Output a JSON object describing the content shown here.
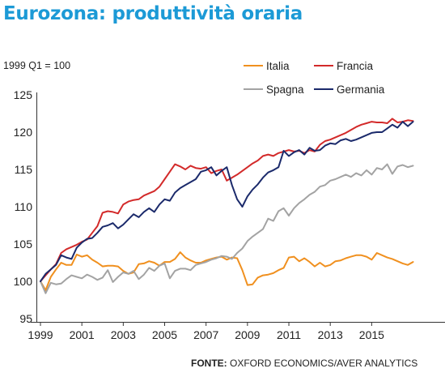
{
  "title": "Eurozona: produttività oraria",
  "subtitle": "1999 Q1 = 100",
  "source": {
    "label": "FONTE:",
    "text": "OXFORD ECONOMICS/AVER ANALYTICS"
  },
  "chart_data": {
    "type": "line",
    "ylim": [
      95,
      125
    ],
    "xlim": [
      1999,
      2017.8
    ],
    "y_ticks": [
      95,
      100,
      105,
      110,
      115,
      120,
      125
    ],
    "x_ticks": [
      1999,
      2001,
      2003,
      2005,
      2007,
      2009,
      2011,
      2013,
      2015
    ],
    "grid": false,
    "legend_position": "top-right",
    "series": [
      {
        "name": "Italia",
        "color": "#f0901f",
        "x": [
          1999,
          1999.25,
          1999.5,
          1999.75,
          2000,
          2000.25,
          2000.5,
          2000.75,
          2001,
          2001.25,
          2001.5,
          2001.75,
          2002,
          2002.25,
          2002.5,
          2002.75,
          2003,
          2003.25,
          2003.5,
          2003.75,
          2004,
          2004.25,
          2004.5,
          2004.75,
          2005,
          2005.25,
          2005.5,
          2005.75,
          2006,
          2006.25,
          2006.5,
          2006.75,
          2007,
          2007.25,
          2007.5,
          2007.75,
          2008,
          2008.25,
          2008.5,
          2008.75,
          2009,
          2009.25,
          2009.5,
          2009.75,
          2010,
          2010.25,
          2010.5,
          2010.75,
          2011,
          2011.25,
          2011.5,
          2011.75,
          2012,
          2012.25,
          2012.5,
          2012.75,
          2013,
          2013.25,
          2013.5,
          2013.75,
          2014,
          2014.25,
          2014.5,
          2014.75,
          2015,
          2015.25,
          2015.5,
          2015.75,
          2016,
          2016.25,
          2016.5,
          2016.75,
          2017
        ],
        "values": [
          100,
          98.8,
          100.6,
          101.6,
          102.5,
          102.2,
          102.2,
          103.6,
          103.3,
          103.5,
          102.9,
          102.5,
          102.0,
          102.1,
          102.1,
          102.0,
          101.4,
          101.0,
          101.2,
          102.3,
          102.4,
          102.7,
          102.5,
          102.1,
          102.6,
          102.6,
          103.0,
          103.9,
          103.2,
          102.8,
          102.5,
          102.5,
          102.8,
          103.0,
          103.2,
          103.3,
          102.9,
          103.2,
          103.1,
          101.5,
          99.5,
          99.6,
          100.5,
          100.8,
          100.9,
          101.1,
          101.5,
          101.8,
          103.2,
          103.3,
          102.7,
          103.1,
          102.6,
          102.0,
          102.5,
          102.0,
          102.2,
          102.7,
          102.8,
          103.1,
          103.3,
          103.5,
          103.5,
          103.3,
          102.9,
          103.8,
          103.5,
          103.2,
          103.0,
          102.7,
          102.4,
          102.2,
          102.6
        ]
      },
      {
        "name": "Francia",
        "color": "#d32a2a",
        "x": [
          1999,
          1999.25,
          1999.5,
          1999.75,
          2000,
          2000.25,
          2000.5,
          2000.75,
          2001,
          2001.25,
          2001.5,
          2001.75,
          2002,
          2002.25,
          2002.5,
          2002.75,
          2003,
          2003.25,
          2003.5,
          2003.75,
          2004,
          2004.25,
          2004.5,
          2004.75,
          2005,
          2005.25,
          2005.5,
          2005.75,
          2006,
          2006.25,
          2006.5,
          2006.75,
          2007,
          2007.25,
          2007.5,
          2007.75,
          2008,
          2008.25,
          2008.5,
          2008.75,
          2009,
          2009.25,
          2009.5,
          2009.75,
          2010,
          2010.25,
          2010.5,
          2010.75,
          2011,
          2011.25,
          2011.5,
          2011.75,
          2012,
          2012.25,
          2012.5,
          2012.75,
          2013,
          2013.25,
          2013.5,
          2013.75,
          2014,
          2014.25,
          2014.5,
          2014.75,
          2015,
          2015.25,
          2015.5,
          2015.75,
          2016,
          2016.25,
          2016.5,
          2016.75,
          2017
        ],
        "values": [
          100,
          100.8,
          101.6,
          102.3,
          103.8,
          104.3,
          104.6,
          104.9,
          105.3,
          105.6,
          106.5,
          107.4,
          109.2,
          109.4,
          109.3,
          109.1,
          110.3,
          110.7,
          110.9,
          111.0,
          111.5,
          111.8,
          112.1,
          112.7,
          113.7,
          114.7,
          115.7,
          115.4,
          115.0,
          115.5,
          115.2,
          115.1,
          115.3,
          114.5,
          114.8,
          115.0,
          113.5,
          113.9,
          114.3,
          114.8,
          115.3,
          115.8,
          116.2,
          116.8,
          117.0,
          116.8,
          117.2,
          117.4,
          117.6,
          117.4,
          117.5,
          117.2,
          117.6,
          117.4,
          118.3,
          118.8,
          119.0,
          119.3,
          119.6,
          119.9,
          120.3,
          120.7,
          121.0,
          121.2,
          121.4,
          121.3,
          121.3,
          121.2,
          121.8,
          121.3,
          121.4,
          121.6,
          121.5
        ]
      },
      {
        "name": "Spagna",
        "color": "#a3a3a3",
        "x": [
          1999,
          1999.25,
          1999.5,
          1999.75,
          2000,
          2000.25,
          2000.5,
          2000.75,
          2001,
          2001.25,
          2001.5,
          2001.75,
          2002,
          2002.25,
          2002.5,
          2002.75,
          2003,
          2003.25,
          2003.5,
          2003.75,
          2004,
          2004.25,
          2004.5,
          2004.75,
          2005,
          2005.25,
          2005.5,
          2005.75,
          2006,
          2006.25,
          2006.5,
          2006.75,
          2007,
          2007.25,
          2007.5,
          2007.75,
          2008,
          2008.25,
          2008.5,
          2008.75,
          2009,
          2009.25,
          2009.5,
          2009.75,
          2010,
          2010.25,
          2010.5,
          2010.75,
          2011,
          2011.25,
          2011.5,
          2011.75,
          2012,
          2012.25,
          2012.5,
          2012.75,
          2013,
          2013.25,
          2013.5,
          2013.75,
          2014,
          2014.25,
          2014.5,
          2014.75,
          2015,
          2015.25,
          2015.5,
          2015.75,
          2016,
          2016.25,
          2016.5,
          2016.75,
          2017
        ],
        "values": [
          100,
          98.4,
          99.8,
          99.6,
          99.7,
          100.3,
          100.8,
          100.6,
          100.4,
          100.9,
          100.6,
          100.2,
          100.5,
          101.5,
          99.9,
          100.6,
          101.2,
          101.0,
          101.4,
          100.3,
          100.9,
          101.8,
          101.4,
          102.1,
          102.4,
          100.4,
          101.4,
          101.7,
          101.7,
          101.5,
          102.2,
          102.4,
          102.6,
          102.9,
          103.1,
          103.4,
          103.3,
          103.0,
          103.8,
          104.4,
          105.4,
          106.0,
          106.5,
          107.0,
          108.4,
          108.1,
          109.4,
          109.8,
          108.8,
          109.8,
          110.5,
          111.0,
          111.6,
          112.0,
          112.7,
          112.9,
          113.5,
          113.7,
          114.0,
          114.3,
          114.0,
          114.5,
          114.2,
          114.9,
          114.3,
          115.2,
          115.0,
          115.7,
          114.4,
          115.4,
          115.6,
          115.3,
          115.5
        ]
      },
      {
        "name": "Germania",
        "color": "#1b2a6b",
        "x": [
          1999,
          1999.25,
          1999.5,
          1999.75,
          2000,
          2000.25,
          2000.5,
          2000.75,
          2001,
          2001.25,
          2001.5,
          2001.75,
          2002,
          2002.25,
          2002.5,
          2002.75,
          2003,
          2003.25,
          2003.5,
          2003.75,
          2004,
          2004.25,
          2004.5,
          2004.75,
          2005,
          2005.25,
          2005.5,
          2005.75,
          2006,
          2006.25,
          2006.5,
          2006.75,
          2007,
          2007.25,
          2007.5,
          2007.75,
          2008,
          2008.25,
          2008.5,
          2008.75,
          2009,
          2009.25,
          2009.5,
          2009.75,
          2010,
          2010.25,
          2010.5,
          2010.75,
          2011,
          2011.25,
          2011.5,
          2011.75,
          2012,
          2012.25,
          2012.5,
          2012.75,
          2013,
          2013.25,
          2013.5,
          2013.75,
          2014,
          2014.25,
          2014.5,
          2014.75,
          2015,
          2015.25,
          2015.5,
          2015.75,
          2016,
          2016.25,
          2016.5,
          2016.75,
          2017
        ],
        "values": [
          100,
          101.0,
          101.6,
          102.2,
          103.5,
          103.2,
          103.0,
          104.5,
          105.2,
          105.7,
          105.8,
          106.5,
          107.3,
          107.5,
          107.8,
          107.1,
          107.6,
          108.3,
          109.0,
          108.6,
          109.3,
          109.8,
          109.3,
          110.3,
          111.0,
          110.8,
          111.9,
          112.5,
          112.9,
          113.3,
          113.7,
          114.7,
          114.9,
          115.3,
          114.2,
          114.8,
          115.3,
          112.9,
          111.0,
          110.0,
          111.4,
          112.3,
          113.0,
          113.9,
          114.6,
          114.9,
          115.3,
          117.5,
          116.8,
          117.3,
          117.6,
          117.0,
          117.9,
          117.5,
          117.6,
          118.2,
          118.5,
          118.4,
          118.9,
          119.1,
          118.8,
          119.0,
          119.3,
          119.6,
          119.9,
          120.0,
          120.0,
          120.5,
          121.0,
          120.6,
          121.4,
          120.8,
          121.4
        ]
      }
    ]
  }
}
